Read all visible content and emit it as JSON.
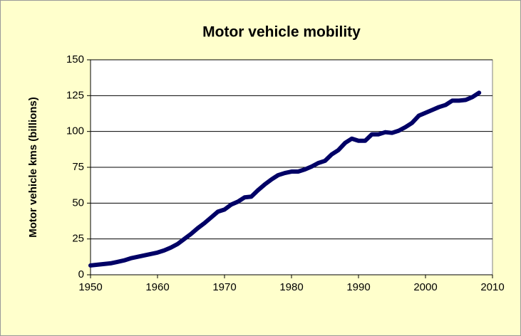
{
  "chart_data": {
    "type": "line",
    "title": "Motor vehicle mobility",
    "y_label": "Motor vehicle kms (billions)",
    "x": [
      1950,
      1951,
      1952,
      1953,
      1954,
      1955,
      1956,
      1957,
      1958,
      1959,
      1960,
      1961,
      1962,
      1963,
      1964,
      1965,
      1966,
      1967,
      1968,
      1969,
      1970,
      1971,
      1972,
      1973,
      1974,
      1975,
      1976,
      1977,
      1978,
      1979,
      1980,
      1981,
      1982,
      1983,
      1984,
      1985,
      1986,
      1987,
      1988,
      1989,
      1990,
      1991,
      1992,
      1993,
      1994,
      1995,
      1996,
      1997,
      1998,
      1999,
      2000,
      2001,
      2002,
      2003,
      2004,
      2005,
      2006,
      2007,
      2008
    ],
    "series": [
      {
        "name": "Motor vehicle kms",
        "color": "#000066",
        "values": [
          6.5,
          7,
          7.5,
          8,
          9,
          10,
          11.5,
          12.5,
          13.5,
          14.5,
          15.5,
          17,
          19,
          21.5,
          25,
          28.5,
          32.5,
          36,
          40,
          44,
          45.5,
          49,
          51,
          54,
          54.5,
          59,
          63,
          66.5,
          69.5,
          71,
          72,
          72,
          73.5,
          75.5,
          78,
          79.5,
          84,
          87,
          92,
          95,
          93.5,
          93.5,
          98,
          98,
          99.5,
          99,
          100.5,
          103,
          106,
          111,
          113,
          115,
          117,
          118.5,
          121.5,
          121.5,
          122,
          124,
          127
        ]
      }
    ],
    "xlim": [
      1950,
      2010
    ],
    "xticks": [
      1950,
      1960,
      1970,
      1980,
      1990,
      2000,
      2010
    ],
    "ylim": [
      0,
      150
    ],
    "yticks": [
      0,
      25,
      50,
      75,
      100,
      125,
      150
    ],
    "grid": true
  }
}
